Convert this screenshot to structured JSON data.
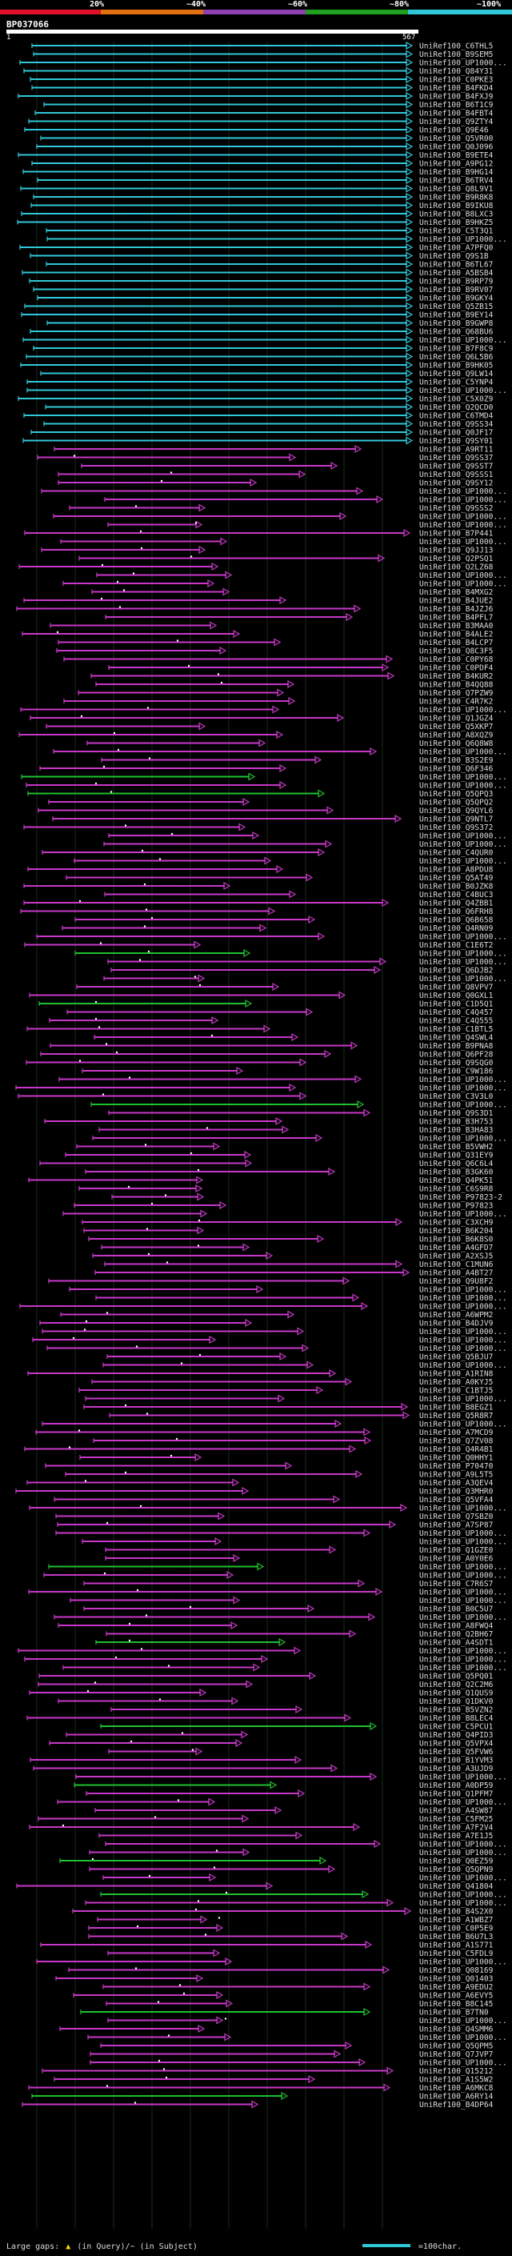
{
  "legend": {
    "ticks": [
      "20%",
      "~40%",
      "~60%",
      "~80%",
      "~100%"
    ],
    "colors": [
      "#e0102a",
      "#e07010",
      "#9040b0",
      "#20a020",
      "#30c8d8"
    ]
  },
  "query": {
    "id": "BP037066",
    "start": "1",
    "end": "567"
  },
  "footer": {
    "large_gaps_label": "Large gaps:",
    "gap_desc": "(in Query)/~ (in Subject)",
    "scale_desc": "=100char."
  },
  "hit_colors": {
    "cyan": "#30c8d8",
    "green": "#20c030",
    "purple": "#c838c8"
  },
  "hits": [
    "UniRef100_C6THL5",
    "UniRef100_B9SEM5",
    "UniRef100_UP1000...",
    "UniRef100_Q84Y31",
    "UniRef100_C0PKE3",
    "UniRef100_B4FKD4",
    "UniRef100_B4FXJ9",
    "UniRef100_B6T1C9",
    "UniRef100_B4FBT4",
    "UniRef100_Q9ZTY4",
    "UniRef100_Q9E46",
    "UniRef100_Q5VR00",
    "UniRef100_Q0J096",
    "UniRef100_B9ETE4",
    "UniRef100_A9PG12",
    "UniRef100_B9HG14",
    "UniRef100_B6TRV4",
    "UniRef100_Q8L9V1",
    "UniRef100_B9R8K8",
    "UniRef100_B9IKU8",
    "UniRef100_B8LXC3",
    "UniRef100_B9HKZ5",
    "UniRef100_C5T3Q1",
    "UniRef100_UP1000...",
    "UniRef100_A7PFQ0",
    "UniRef100_Q9S1B",
    "UniRef100_B6TL67",
    "UniRef100_A5BSB4",
    "UniRef100_B9RP79",
    "UniRef100_B9RV07",
    "UniRef100_B9GKY4",
    "UniRef100_Q5ZB15",
    "UniRef100_B9EY14",
    "UniRef100_B9GWP8",
    "UniRef100_Q68BU6",
    "UniRef100_UP1000...",
    "UniRef100_B7F8C9",
    "UniRef100_Q6L5B6",
    "UniRef100_B9HK05",
    "UniRef100_Q9LW14",
    "UniRef100_C5YNP4",
    "UniRef100_UP1000...",
    "UniRef100_C5X0Z9",
    "UniRef100_Q2QCD0",
    "UniRef100_C6TMD4",
    "UniRef100_Q9SS34",
    "UniRef100_Q0JF17",
    "UniRef100_Q9SY01",
    "UniRef100_A9RT11",
    "UniRef100_Q9SS37",
    "UniRef100_Q9SST7",
    "UniRef100_Q9SSS1",
    "UniRef100_Q9SY12",
    "UniRef100_UP1000...",
    "UniRef100_UP1000...",
    "UniRef100_Q9SSS2",
    "UniRef100_UP1000...",
    "UniRef100_UP1000...",
    "UniRef100_B7P441",
    "UniRef100_UP1000...",
    "UniRef100_Q9JJ13",
    "UniRef100_Q2PSQ1",
    "UniRef100_Q2LZ68",
    "UniRef100_UP1000...",
    "UniRef100_UP1000...",
    "UniRef100_B4MXG2",
    "UniRef100_B4JUE2",
    "UniRef100_B4JZJ6",
    "UniRef100_B4PFL7",
    "UniRef100_B3MAA0",
    "UniRef100_B4ALE2",
    "UniRef100_B4LCP7",
    "UniRef100_Q8C3F5",
    "UniRef100_C0PY68",
    "UniRef100_C0PDF4",
    "UniRef100_B4KUR2",
    "UniRef100_B4QQ88",
    "UniRef100_Q7PZW9",
    "UniRef100_C4R7K2",
    "UniRef100_UP1000...",
    "UniRef100_Q1JGZ4",
    "UniRef100_Q5XKP7",
    "UniRef100_A8XQZ9",
    "UniRef100_Q6Q8W8",
    "UniRef100_UP1000...",
    "UniRef100_B3S2E9",
    "UniRef100_Q6F346",
    "UniRef100_UP1000...",
    "UniRef100_UP1000...",
    "UniRef100_Q5QPQ3",
    "UniRef100_Q5QPQ2",
    "UniRef100_Q9QYL6",
    "UniRef100_Q9NTL7",
    "UniRef100_Q9S372",
    "UniRef100_UP1000...",
    "UniRef100_UP1000...",
    "UniRef100_C4QUR0",
    "UniRef100_UP1000...",
    "UniRef100_A8PDU8",
    "UniRef100_Q5AT49",
    "UniRef100_B0JZK8",
    "UniRef100_C4BUC3",
    "UniRef100_Q4ZBB1",
    "UniRef100_Q6FRH8",
    "UniRef100_Q6B658",
    "UniRef100_Q4RN09",
    "UniRef100_UP1000...",
    "UniRef100_C1E6T2",
    "UniRef100_UP1000...",
    "UniRef100_UP1000...",
    "UniRef100_Q6DJB2",
    "UniRef100_UP1000...",
    "UniRef100_Q8VPV7",
    "UniRef100_Q0GXL1",
    "UniRef100_C1D5Q1",
    "UniRef100_C4Q457",
    "UniRef100_C4Q555",
    "UniRef100_C1BTL5",
    "UniRef100_Q4SWL4",
    "UniRef100_B9PNA8",
    "UniRef100_Q6PF28",
    "UniRef100_Q9SQG0",
    "UniRef100_C9W186",
    "UniRef100_UP1000...",
    "UniRef100_UP1000...",
    "UniRef100_C3V3L0",
    "UniRef100_UP1000...",
    "UniRef100_Q9S3D1",
    "UniRef100_B3H753",
    "UniRef100_B3HA83",
    "UniRef100_UP1000...",
    "UniRef100_B5VWH2",
    "UniRef100_Q31EY9",
    "UniRef100_Q6C6L4",
    "UniRef100_B3GK60",
    "UniRef100_Q4PK51",
    "UniRef100_C6S9R8",
    "UniRef100_P97823-2",
    "UniRef100_P97823",
    "UniRef100_UP1000...",
    "UniRef100_C3XCH9",
    "UniRef100_B6K204",
    "UniRef100_B6K8S0",
    "UniRef100_A4GFD7",
    "UniRef100_A2XSJ5",
    "UniRef100_C1MUN6",
    "UniRef100_A4BT27",
    "UniRef100_Q9U8F2",
    "UniRef100_UP1000...",
    "UniRef100_UP1000...",
    "UniRef100_UP1000...",
    "UniRef100_A6WPM2",
    "UniRef100_B4DJV9",
    "UniRef100_UP1000...",
    "UniRef100_UP1000...",
    "UniRef100_UP1000...",
    "UniRef100_Q5BJU7",
    "UniRef100_UP1000...",
    "UniRef100_A1RIN8",
    "UniRef100_A0KYJ5",
    "UniRef100_C1BTJ5",
    "UniRef100_UP1000...",
    "UniRef100_B8EGZ1",
    "UniRef100_Q5R8R7",
    "UniRef100_UP1000...",
    "UniRef100_A7MCD9",
    "UniRef100_Q7ZV08",
    "UniRef100_Q4R4B1",
    "UniRef100_Q0HHY1",
    "UniRef100_P70470",
    "UniRef100_A9L5T5",
    "UniRef100_A3QEV4",
    "UniRef100_Q3MHR0",
    "UniRef100_Q5VFA4",
    "UniRef100_UP1000...",
    "UniRef100_Q7SBZ0",
    "UniRef100_A7SP87",
    "UniRef100_UP1000...",
    "UniRef100_UP1000...",
    "UniRef100_Q1GZE0",
    "UniRef100_A0Y0E6",
    "UniRef100_UP1000...",
    "UniRef100_UP1000...",
    "UniRef100_C7R6S7",
    "UniRef100_UP1000...",
    "UniRef100_UP1000...",
    "UniRef100_B0C5U7",
    "UniRef100_UP1000...",
    "UniRef100_A8FWQ4",
    "UniRef100_Q2BH67",
    "UniRef100_A4SDT1",
    "UniRef100_UP1000...",
    "UniRef100_UP1000...",
    "UniRef100_UP1000...",
    "UniRef100_Q5PQ01",
    "UniRef100_Q2C2M6",
    "UniRef100_Q1QUS9",
    "UniRef100_Q1DKV0",
    "UniRef100_B5VZN2",
    "UniRef100_B8LEC4",
    "UniRef100_C5PCU1",
    "UniRef100_Q4PID3",
    "UniRef100_Q5VPX4",
    "UniRef100_Q5FVW6",
    "UniRef100_B1YVM3",
    "UniRef100_A3UJD9",
    "UniRef100_UP1000...",
    "UniRef100_A0DP59",
    "UniRef100_Q1PFM7",
    "UniRef100_UP1000...",
    "UniRef100_A4SW87",
    "UniRef100_C5FM25",
    "UniRef100_A7F2V4",
    "UniRef100_A7E1J5",
    "UniRef100_UP1000...",
    "UniRef100_UP1000...",
    "UniRef100_Q0EZ59",
    "UniRef100_Q5QPN9",
    "UniRef100_UP1000...",
    "UniRef100_Q41804",
    "UniRef100_UP1000...",
    "UniRef100_UP1000...",
    "UniRef100_B4S2X0",
    "UniRef100_A1WBZ7",
    "UniRef100_C0P5E9",
    "UniRef100_B6U7L3",
    "UniRef100_A1S771",
    "UniRef100_C5FDL9",
    "UniRef100_UP1000...",
    "UniRef100_Q08169",
    "UniRef100_Q01403",
    "UniRef100_A9EDU2",
    "UniRef100_A6EVY5",
    "UniRef100_B8C145",
    "UniRef100_B7TN0",
    "UniRef100_UP1000...",
    "UniRef100_Q4SMM6",
    "UniRef100_UP1000...",
    "UniRef100_Q5QPM5",
    "UniRef100_Q7JVP7",
    "UniRef100_UP1000...",
    "UniRef100_Q15212",
    "UniRef100_A1S5W2",
    "UniRef100_A6MKC8",
    "UniRef100_A6RY14",
    "UniRef100_B4DP64"
  ]
}
